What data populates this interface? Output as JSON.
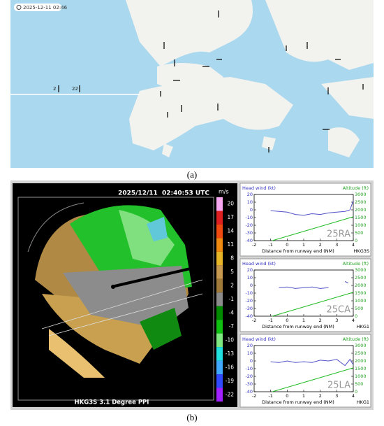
{
  "map": {
    "timestamp": "2025-12-11 02:46",
    "labels": [
      "2",
      "22"
    ],
    "caption": "(a)"
  },
  "radar": {
    "timestamp": "2025/12/11  02:40:53 UTC",
    "product": "HKG3S 3.1 Degree PPI",
    "colorbar": {
      "unit": "m/s",
      "ticks": [
        20,
        17,
        14,
        11,
        8,
        5,
        2,
        -1,
        -4,
        -7,
        -10,
        -13,
        -16,
        -19,
        -22
      ],
      "colors": [
        "#f7a8f0",
        "#e02020",
        "#f04a10",
        "#f08a10",
        "#e8b428",
        "#c89a50",
        "#a07a38",
        "#8c8c8c",
        "#008a00",
        "#10c010",
        "#80e880",
        "#20e0e0",
        "#40a8ff",
        "#3048ff",
        "#a020ff"
      ]
    }
  },
  "chart_data": [
    {
      "type": "line",
      "y_label": "Head wind (kt)",
      "y2_label": "Altitude (ft)",
      "x_label": "Distance from runway end (NM)",
      "runway": "25RA",
      "station": "HKG3S",
      "xlim": [
        -2,
        4
      ],
      "xticks": [
        -2,
        -1,
        0,
        1,
        2,
        3,
        4
      ],
      "ylim": [
        -40,
        20
      ],
      "yticks": [
        -40,
        -30,
        -20,
        -10,
        0,
        10,
        20
      ],
      "y2lim": [
        0,
        3000
      ],
      "y2ticks": [
        0,
        500,
        1000,
        1500,
        2000,
        2500,
        3000
      ],
      "series": [
        {
          "color": "#5050c8",
          "x": [
            -1,
            -0.5,
            0,
            0.5,
            1,
            1.5,
            2,
            2.5,
            3,
            3.5,
            3.8,
            4
          ],
          "values": [
            -1,
            -2,
            -3,
            -6,
            -7,
            -5,
            -6,
            -4,
            -3,
            -2,
            0,
            12
          ]
        },
        {
          "color": "#22bb22",
          "axis": "y2",
          "x": [
            -0.9,
            4
          ],
          "values": [
            0,
            1550
          ]
        }
      ]
    },
    {
      "type": "line",
      "y_label": "Head wind (kt)",
      "y2_label": "Altitude (ft)",
      "x_label": "Distance from runway end (NM)",
      "runway": "25CA",
      "station": "HKG1",
      "xlim": [
        -2,
        4
      ],
      "xticks": [
        -2,
        -1,
        0,
        1,
        2,
        3,
        4
      ],
      "ylim": [
        -40,
        20
      ],
      "yticks": [
        -40,
        -30,
        -20,
        -10,
        0,
        10,
        20
      ],
      "y2lim": [
        0,
        3000
      ],
      "y2ticks": [
        0,
        500,
        1000,
        1500,
        2000,
        2500,
        3000
      ],
      "series": [
        {
          "color": "#5050c8",
          "x": [
            -0.5,
            0,
            0.5,
            1,
            1.5,
            2,
            2.5,
            3,
            3.5,
            3.7
          ],
          "values": [
            -3,
            -2,
            -4,
            -3,
            -2,
            -4,
            -3,
            null,
            5,
            3
          ]
        },
        {
          "color": "#22bb22",
          "axis": "y2",
          "x": [
            -0.9,
            4
          ],
          "values": [
            0,
            1550
          ]
        }
      ]
    },
    {
      "type": "line",
      "y_label": "Head wind (kt)",
      "y2_label": "Altitude (ft)",
      "x_label": "Distance from runway end (NM)",
      "runway": "25LA",
      "station": "HKG1",
      "xlim": [
        -2,
        4
      ],
      "xticks": [
        -2,
        -1,
        0,
        1,
        2,
        3,
        4
      ],
      "ylim": [
        -40,
        20
      ],
      "yticks": [
        -40,
        -30,
        -20,
        -10,
        0,
        10,
        20
      ],
      "y2lim": [
        0,
        3000
      ],
      "y2ticks": [
        0,
        500,
        1000,
        1500,
        2000,
        2500,
        3000
      ],
      "series": [
        {
          "color": "#5050c8",
          "x": [
            -1,
            -0.5,
            0,
            0.5,
            1,
            1.5,
            2,
            2.5,
            3,
            3.5,
            3.8,
            4
          ],
          "values": [
            -1,
            -2,
            0,
            -2,
            -1,
            -2,
            1,
            0,
            2,
            -6,
            2,
            -5
          ]
        },
        {
          "color": "#22bb22",
          "axis": "y2",
          "x": [
            -0.9,
            4
          ],
          "values": [
            0,
            1550
          ]
        }
      ]
    }
  ],
  "caption": "(b)"
}
